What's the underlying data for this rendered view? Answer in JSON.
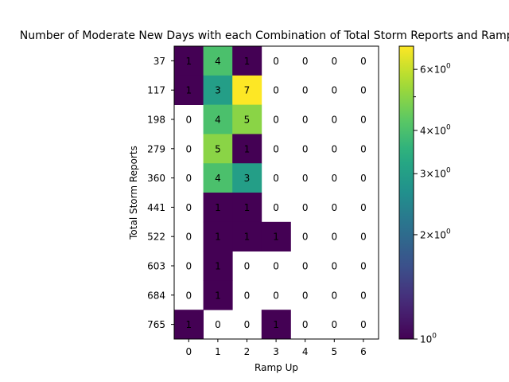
{
  "chart_data": {
    "type": "heatmap",
    "title": "Number of Moderate New Days with each Combination of Total Storm Reports and Ramp Up",
    "xlabel": "Ramp Up",
    "ylabel": "Total Storm Reports",
    "x_categories": [
      "0",
      "1",
      "2",
      "3",
      "4",
      "5",
      "6"
    ],
    "y_categories": [
      "37",
      "117",
      "198",
      "279",
      "360",
      "441",
      "522",
      "603",
      "684",
      "765"
    ],
    "values": [
      [
        1,
        4,
        1,
        0,
        0,
        0,
        0
      ],
      [
        1,
        3,
        7,
        0,
        0,
        0,
        0
      ],
      [
        0,
        4,
        5,
        0,
        0,
        0,
        0
      ],
      [
        0,
        5,
        1,
        0,
        0,
        0,
        0
      ],
      [
        0,
        4,
        3,
        0,
        0,
        0,
        0
      ],
      [
        0,
        1,
        1,
        0,
        0,
        0,
        0
      ],
      [
        0,
        1,
        1,
        1,
        0,
        0,
        0
      ],
      [
        0,
        1,
        0,
        0,
        0,
        0,
        0
      ],
      [
        0,
        1,
        0,
        0,
        0,
        0,
        0
      ],
      [
        1,
        0,
        0,
        1,
        0,
        0,
        0
      ]
    ],
    "color_scale": "log",
    "colormap": "viridis",
    "colorbar": {
      "range": [
        1,
        7
      ],
      "ticks": [
        {
          "value": 1,
          "base": "10",
          "exp": "0",
          "mult": ""
        },
        {
          "value": 2,
          "base": "10",
          "exp": "0",
          "mult": "2×"
        },
        {
          "value": 3,
          "base": "10",
          "exp": "0",
          "mult": "3×"
        },
        {
          "value": 4,
          "base": "10",
          "exp": "0",
          "mult": "4×"
        },
        {
          "value": 6,
          "base": "10",
          "exp": "0",
          "mult": "6×"
        }
      ],
      "minor_ticks": [
        5
      ]
    },
    "grid": false,
    "zero_cells": "blank"
  }
}
